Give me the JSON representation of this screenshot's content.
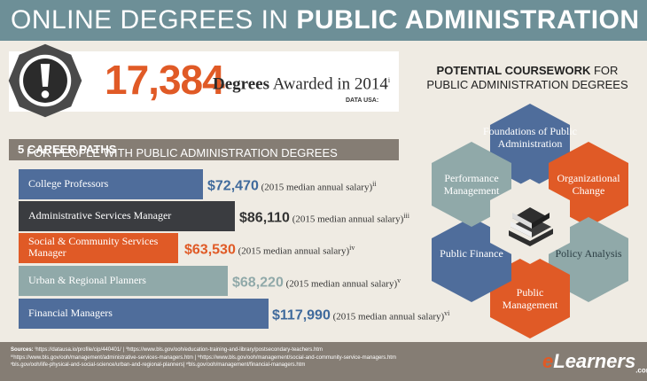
{
  "banner": {
    "title_plain": "ONLINE DEGREES IN ",
    "title_bold": "PUBLIC ADMINISTRATION"
  },
  "stat": {
    "number": "17,384",
    "label_bold": "Degrees",
    "label_rest": " Awarded in 2014",
    "footnote": "i",
    "source": "DATA USA:",
    "icon": "exclamation-icon"
  },
  "careers": {
    "header_bold": "5 CAREER PATHS",
    "header_rest": " FOR PEOPLE WITH PUBLIC ADMINISTRATION DEGREES",
    "salary_suffix": "(2015 median annual salary)",
    "items": [
      {
        "label": "College Professors",
        "salary": "$72,470",
        "footnote": "ii",
        "color": "#4f6d9b",
        "amount_color": "#3f6a9c"
      },
      {
        "label": "Administrative Services Manager",
        "salary": "$86,110",
        "footnote": "iii",
        "color": "#3a3c40",
        "amount_color": "#333333"
      },
      {
        "label": "Social & Community Services Manager",
        "salary": "$63,530",
        "footnote": "iv",
        "color": "#e05a26",
        "amount_color": "#e05a26"
      },
      {
        "label": "Urban & Regional Planners",
        "salary": "$68,220",
        "footnote": "v",
        "color": "#90a9a9",
        "amount_color": "#90a9a9"
      },
      {
        "label": "Financial Managers",
        "salary": "$117,990",
        "footnote": "vi",
        "color": "#4f6d9b",
        "amount_color": "#3f6a9c"
      }
    ]
  },
  "coursework": {
    "title_bold": "POTENTIAL COURSEWORK",
    "title_rest": " FOR PUBLIC ADMINISTRATION DEGREES",
    "center_icon": "books-icon",
    "items": [
      {
        "label": "Foundations of Public Administration",
        "color": "#4f6d9b",
        "text_color": "#ffffff"
      },
      {
        "label": "Organizational Change",
        "color": "#e05a26",
        "text_color": "#ffffff"
      },
      {
        "label": "Policy Analysis",
        "color": "#90a9a9",
        "text_color": "#2c3e44"
      },
      {
        "label": "Public Management",
        "color": "#e05a26",
        "text_color": "#ffffff"
      },
      {
        "label": "Public Finance",
        "color": "#4f6d9b",
        "text_color": "#ffffff"
      },
      {
        "label": "Performance Management",
        "color": "#90a9a9",
        "text_color": "#ffffff"
      }
    ]
  },
  "footer": {
    "sources_label": "Sources:",
    "line1": " ⁱhttps://datausa.io/profile/cip/440401/ | ⁱⁱhttps://www.bls.gov/ooh/education-training-and-library/postsecondary-teachers.htm",
    "line2": "ⁱⁱⁱhttps://www.bls.gov/ooh/management/administrative-services-managers.htm | ⁱᵛhttps://www.bls.gov/ooh/management/social-and-community-service-managers.htm",
    "line3": "ᵛbls.gov/ooh/life-physical-and-social-science/urban-and-regional-planners| ᵛⁱbls.gov/ooh/management/financial-managers.htm",
    "brand_e": "e",
    "brand_rest": "Learners",
    "brand_suffix": ".com"
  }
}
